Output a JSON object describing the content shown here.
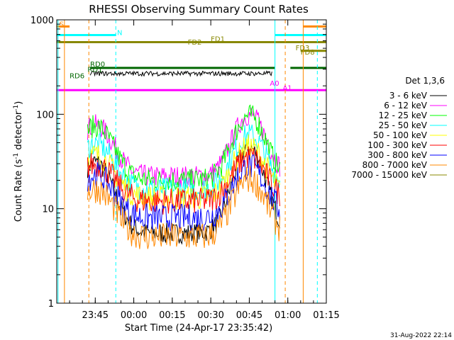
{
  "chart_data": {
    "type": "line",
    "title": "RHESSI Observing Summary Count Rates",
    "xlabel": "Start Time (24-Apr-17 23:35:42)",
    "ylabel_main": "Count Rate (s",
    "ylabel_sup1": "-1",
    "ylabel_mid": " detector",
    "ylabel_sup2": "-1",
    "ylabel_end": ")",
    "yscale": "log",
    "ylim": [
      1,
      1000
    ],
    "xlim_minutes": [
      -15,
      90
    ],
    "x_ticks": [
      {
        "label": "23:45",
        "t": 0
      },
      {
        "label": "00:00",
        "t": 15
      },
      {
        "label": "00:15",
        "t": 30
      },
      {
        "label": "00:30",
        "t": 45
      },
      {
        "label": "00:45",
        "t": 60
      },
      {
        "label": "01:00",
        "t": 75
      },
      {
        "label": "01:15",
        "t": 90
      }
    ],
    "y_ticks": [
      {
        "label": "1",
        "v": 1
      },
      {
        "label": "10",
        "v": 10
      },
      {
        "label": "100",
        "v": 100
      },
      {
        "label": "1000",
        "v": 1000
      }
    ],
    "legend_title": "Det 1,3,6",
    "legend_placement": "right",
    "series": [
      {
        "name": "3 - 6 keV",
        "color": "#000000",
        "base": 5.5,
        "amp": 2.5
      },
      {
        "name": "6 - 12 keV",
        "color": "#ff00ff",
        "base": 22,
        "amp": 1.8
      },
      {
        "name": "12 - 25 keV",
        "color": "#00ff00",
        "base": 20,
        "amp": 1.9
      },
      {
        "name": "25 - 50 keV",
        "color": "#00ffff",
        "base": 16,
        "amp": 1.6
      },
      {
        "name": "50 - 100 keV",
        "color": "#ffff00",
        "base": 13,
        "amp": 1.5
      },
      {
        "name": "100 - 300 keV",
        "color": "#ff0000",
        "base": 12,
        "amp": 1.3
      },
      {
        "name": "300 - 800 keV",
        "color": "#0000ff",
        "base": 8,
        "amp": 1.5
      },
      {
        "name": "800 - 7000 keV",
        "color": "#ff8800",
        "base": 5,
        "amp": 1.7
      },
      {
        "name": "7000 - 15000 keV",
        "color": "#888800",
        "base": 580,
        "amp": 1.0
      }
    ],
    "flag_lines": [
      {
        "label": "S",
        "color": "#ff8800",
        "level": 850
      },
      {
        "label": "N",
        "color": "#00ffff",
        "level": 690
      },
      {
        "label": "FD1",
        "color": "#888800",
        "level": 580
      },
      {
        "label": "FD2",
        "color": "#888800",
        "level": 580
      },
      {
        "label": "FD3",
        "color": "#888800",
        "level": 470
      },
      {
        "label": "FD8",
        "color": "#888800",
        "level": 430
      },
      {
        "label": "RD0",
        "color": "#006600",
        "level": 310
      },
      {
        "label": "RD1",
        "color": "#006600",
        "level": 270
      },
      {
        "label": "RD6",
        "color": "#006600",
        "level": 235
      },
      {
        "label": "A0",
        "color": "#ff00ff",
        "level": 180
      },
      {
        "label": "A1",
        "color": "#ff00ff",
        "level": 180
      }
    ],
    "vertical_markers": [
      {
        "t": -14.5,
        "color": "#00ffff",
        "style": "solid"
      },
      {
        "t": -12,
        "color": "#ff8800",
        "style": "solid"
      },
      {
        "t": -2.5,
        "color": "#ff8800",
        "style": "dashed"
      },
      {
        "t": 8,
        "color": "#00ffff",
        "style": "dashed"
      },
      {
        "t": 70,
        "color": "#00ffff",
        "style": "solid"
      },
      {
        "t": 74,
        "color": "#ff8800",
        "style": "dashed"
      },
      {
        "t": 81,
        "color": "#ff8800",
        "style": "solid"
      },
      {
        "t": 86.5,
        "color": "#00ffff",
        "style": "dashed"
      }
    ],
    "timestamp": "31-Aug-2022 22:14"
  }
}
